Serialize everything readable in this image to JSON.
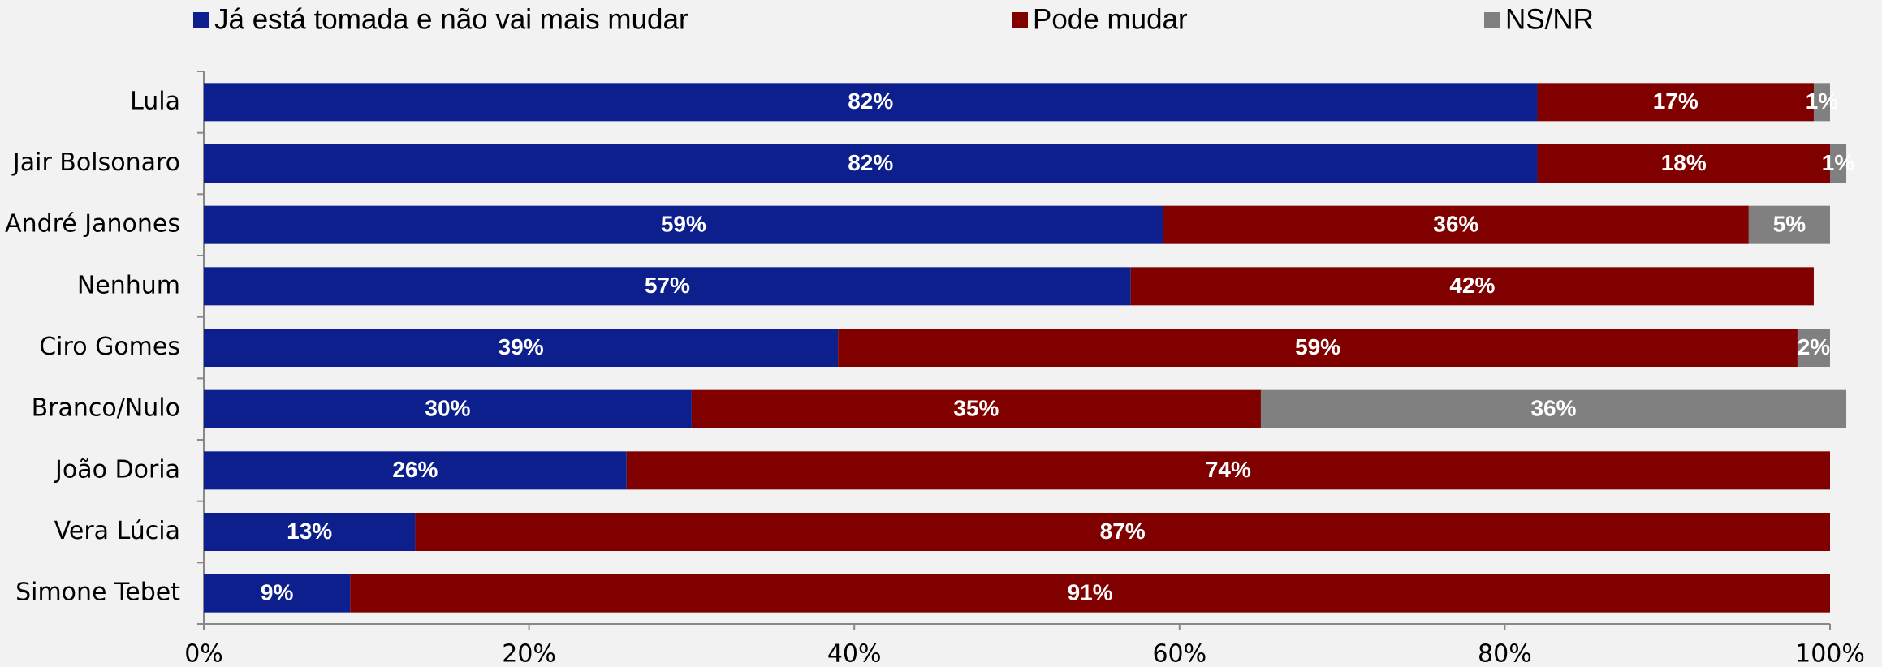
{
  "chart_data": {
    "type": "bar",
    "orientation": "horizontal",
    "stacked": true,
    "categories": [
      "Lula",
      "Jair Bolsonaro",
      "André Janones",
      "Nenhum",
      "Ciro Gomes",
      "Branco/Nulo",
      "João Doria",
      "Vera Lúcia",
      "Simone Tebet"
    ],
    "series": [
      {
        "name": "Já está tomada e não vai mais mudar",
        "color": "#0d1f8c",
        "values": [
          82,
          82,
          59,
          57,
          39,
          30,
          26,
          13,
          9
        ],
        "value_labels": [
          "82%",
          "82%",
          "59%",
          "57%",
          "39%",
          "30%",
          "26%",
          "13%",
          "9%"
        ]
      },
      {
        "name": "Pode mudar",
        "color": "#800000",
        "values": [
          17,
          18,
          36,
          42,
          59,
          35,
          74,
          87,
          91
        ],
        "value_labels": [
          "17%",
          "18%",
          "36%",
          "42%",
          "59%",
          "35%",
          "74%",
          "87%",
          "91%"
        ]
      },
      {
        "name": "NS/NR",
        "color": "#808080",
        "values": [
          1,
          1,
          5,
          null,
          2,
          36,
          null,
          null,
          null
        ],
        "value_labels": [
          "1%",
          "1%",
          "5%",
          null,
          "2%",
          "36%",
          null,
          null,
          null
        ]
      }
    ],
    "xlim": [
      0,
      100
    ],
    "xticks": [
      {
        "value": 0,
        "label": "0%"
      },
      {
        "value": 20,
        "label": "20%"
      },
      {
        "value": 40,
        "label": "40%"
      },
      {
        "value": 60,
        "label": "60%"
      },
      {
        "value": 80,
        "label": "80%"
      },
      {
        "value": 100,
        "label": "100%"
      }
    ],
    "legend": "top"
  }
}
